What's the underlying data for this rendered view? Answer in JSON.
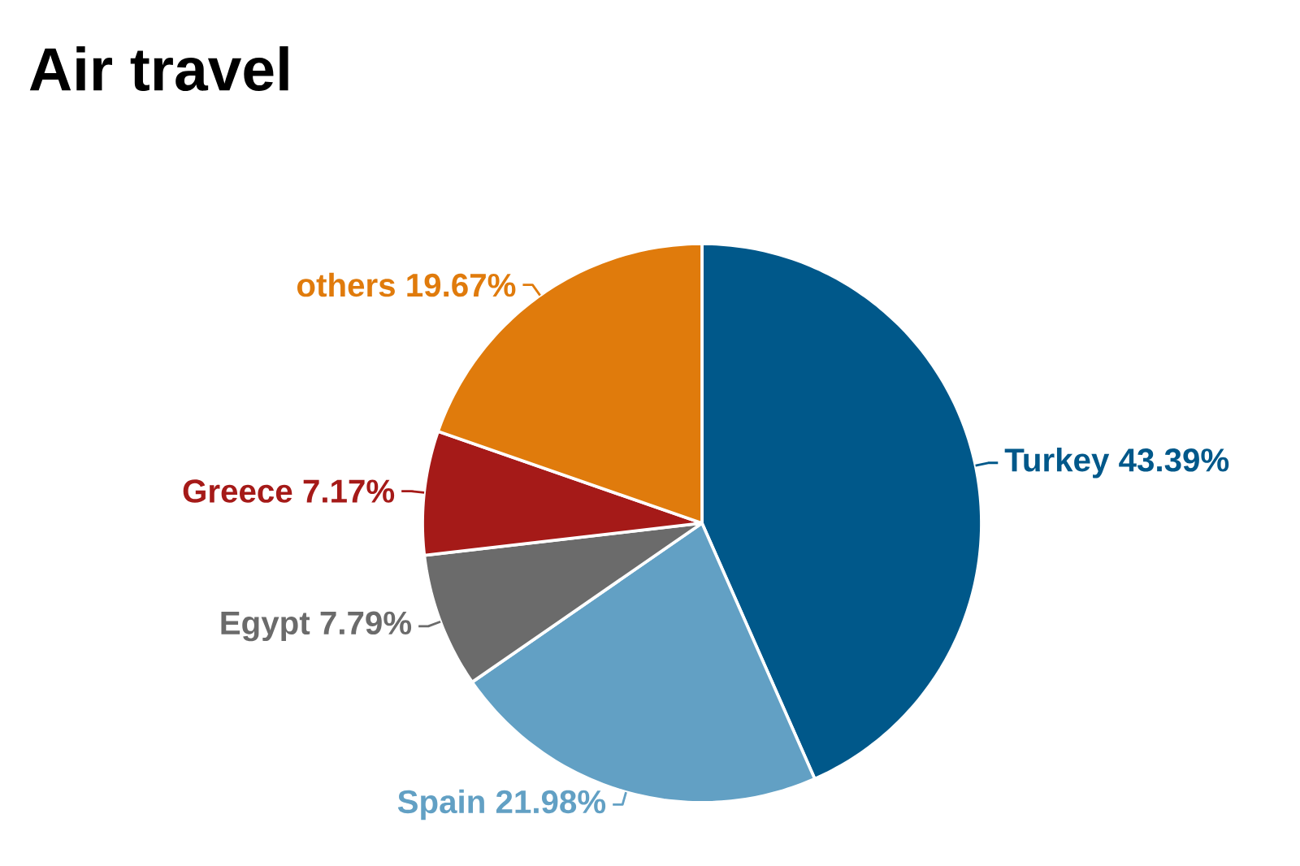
{
  "chart_data": {
    "type": "pie",
    "title": "Air travel",
    "categories": [
      "Turkey",
      "Spain",
      "Egypt",
      "Greece",
      "others"
    ],
    "values": [
      43.39,
      21.98,
      7.79,
      7.17,
      19.67
    ],
    "value_labels": [
      "43.39%",
      "21.98%",
      "7.79%",
      "7.17%",
      "19.67%"
    ],
    "colors": [
      "#00588a",
      "#62a0c4",
      "#6b6b6b",
      "#a51a18",
      "#e07b0c"
    ]
  }
}
